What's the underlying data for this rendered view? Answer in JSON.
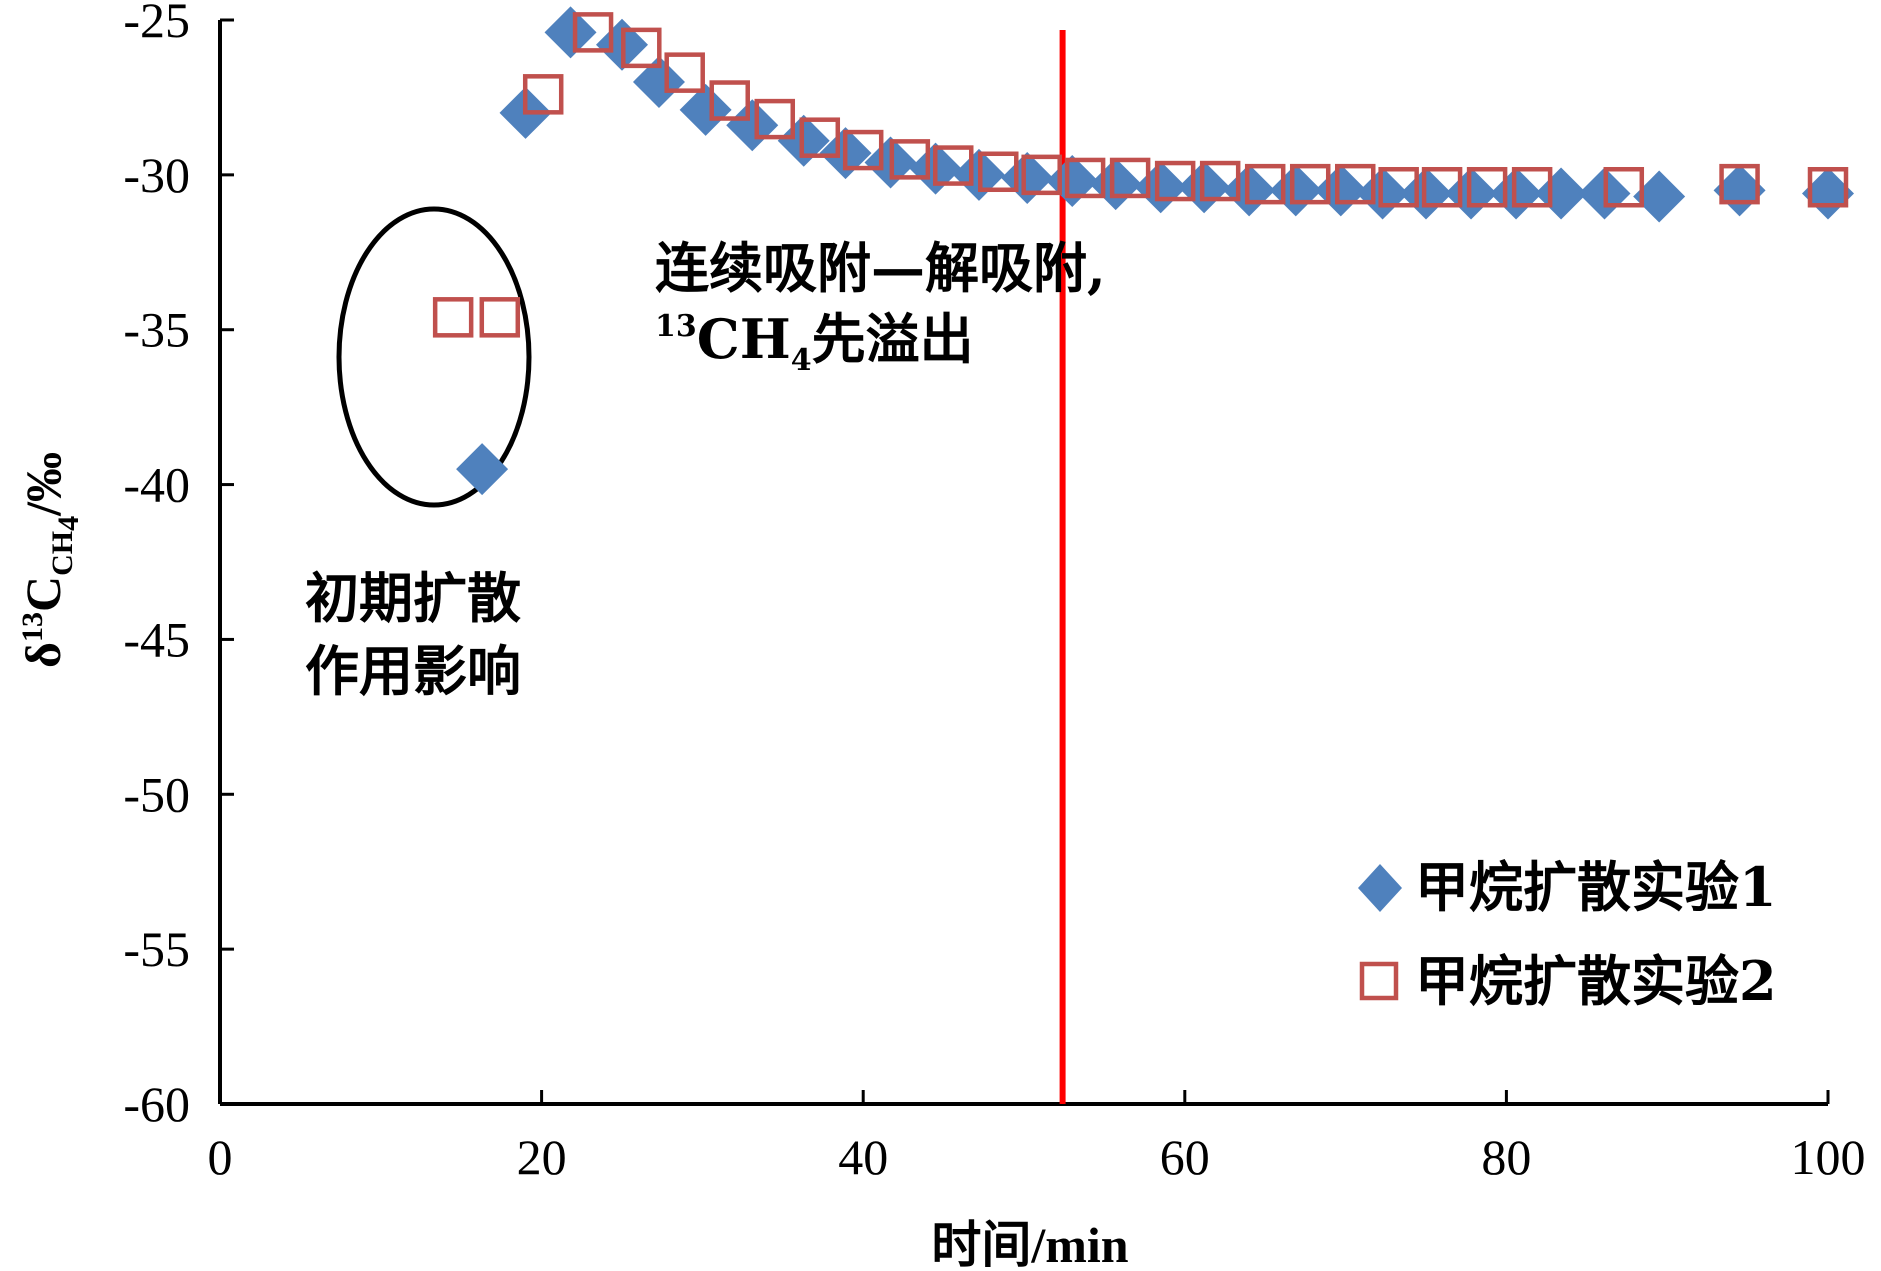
{
  "chart_data": {
    "type": "scatter",
    "xlabel": "时间/min",
    "ylabel": {
      "prefix": "δ",
      "sup": "13",
      "main": "C",
      "sub": "CH",
      "sub_sub": "4",
      "suffix": "/‰"
    },
    "xlim": [
      0,
      100
    ],
    "ylim": [
      -60,
      -25
    ],
    "x_ticks": [
      "0",
      "20",
      "40",
      "60",
      "80",
      "100"
    ],
    "x_tick_values": [
      0,
      20,
      40,
      60,
      80,
      100
    ],
    "y_ticks": [
      "-25",
      "-30",
      "-35",
      "-40",
      "-45",
      "-50",
      "-55",
      "-60"
    ],
    "y_tick_values": [
      -25,
      -30,
      -35,
      -40,
      -45,
      -50,
      -55,
      -60
    ],
    "grid": false,
    "legend_position": "bottom-right",
    "series": [
      {
        "name": "甲烷扩散实验1",
        "marker": "diamond",
        "color": "#4F81BD",
        "x": [
          16.3,
          19.0,
          21.8,
          25.0,
          27.3,
          30.2,
          33.1,
          36.3,
          38.9,
          41.7,
          44.5,
          47.2,
          50.2,
          53.0,
          55.7,
          58.5,
          61.2,
          64.0,
          66.9,
          69.7,
          72.3,
          75.0,
          77.8,
          80.6,
          83.4,
          86.1,
          89.5,
          94.5,
          100.0
        ],
        "y": [
          -39.5,
          -28.0,
          -25.4,
          -25.8,
          -27.0,
          -27.9,
          -28.4,
          -28.9,
          -29.3,
          -29.6,
          -29.8,
          -30.0,
          -30.1,
          -30.2,
          -30.3,
          -30.4,
          -30.4,
          -30.5,
          -30.5,
          -30.5,
          -30.6,
          -30.6,
          -30.6,
          -30.6,
          -30.6,
          -30.6,
          -30.7,
          -30.5,
          -30.6
        ]
      },
      {
        "name": "甲烷扩散实验2",
        "marker": "square-open",
        "color": "#C0504D",
        "x": [
          14.5,
          17.4,
          20.1,
          23.2,
          26.2,
          28.9,
          31.7,
          34.5,
          37.3,
          40.0,
          42.9,
          45.6,
          48.4,
          51.1,
          53.8,
          56.6,
          59.4,
          62.2,
          65.0,
          67.8,
          70.6,
          73.3,
          76.0,
          78.8,
          81.6,
          87.3,
          94.5,
          100.0
        ],
        "y": [
          -34.6,
          -34.6,
          -27.4,
          -25.4,
          -25.9,
          -26.7,
          -27.6,
          -28.2,
          -28.8,
          -29.2,
          -29.5,
          -29.7,
          -29.9,
          -30.0,
          -30.1,
          -30.1,
          -30.2,
          -30.2,
          -30.3,
          -30.3,
          -30.3,
          -30.4,
          -30.4,
          -30.4,
          -30.4,
          -30.4,
          -30.3,
          -30.4
        ]
      }
    ],
    "reference_line": {
      "x": 52.4,
      "color": "#FF0000"
    },
    "annotations": {
      "ellipse_label_line1": "初期扩散",
      "ellipse_label_line2": "作用影响",
      "right_label_line1": "连续吸附—解吸附,",
      "right_label_sup": "13",
      "right_label_ch": "CH",
      "right_label_sub": "4",
      "right_label_tail": "先溢出"
    }
  }
}
